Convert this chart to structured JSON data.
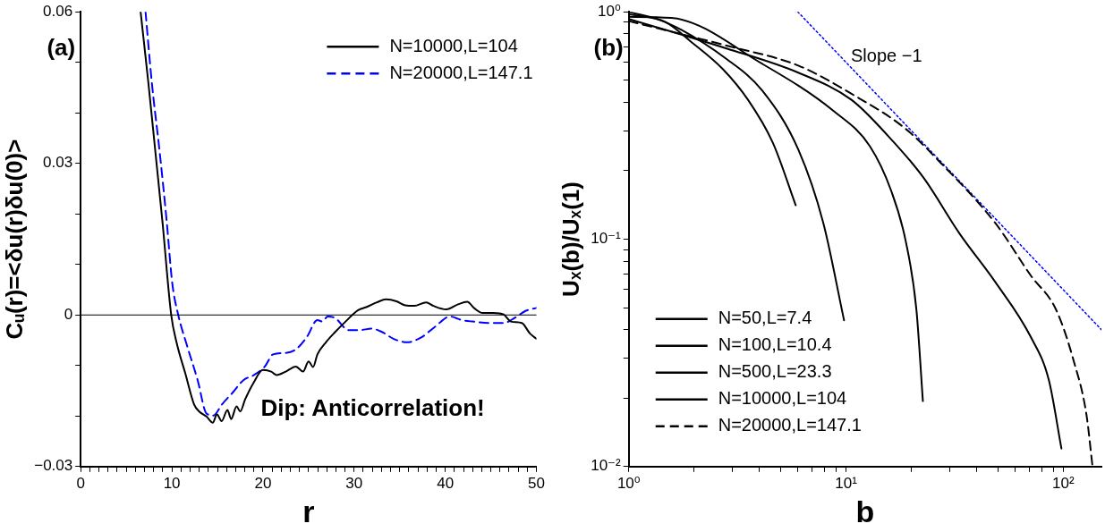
{
  "chart_data": [
    {
      "type": "line",
      "xlabel": "r",
      "ylabel": "Cᵤ(r)=<δu(r)δu(0)>",
      "xlim": [
        0,
        50
      ],
      "ylim": [
        -0.03,
        0.06
      ],
      "xticks": [
        0,
        {
          "value": 1,
          "label": null
        },
        {
          "value": 2,
          "label": null
        },
        {
          "value": 3,
          "label": null
        },
        {
          "value": 4,
          "label": null
        },
        {
          "value": 5,
          "label": null
        },
        {
          "value": 6,
          "label": null
        },
        {
          "value": 7,
          "label": null
        },
        {
          "value": 8,
          "label": null
        },
        {
          "value": 9,
          "label": null
        },
        10,
        {
          "value": 11,
          "label": null
        },
        {
          "value": 12,
          "label": null
        },
        {
          "value": 13,
          "label": null
        },
        {
          "value": 14,
          "label": null
        },
        {
          "value": 15,
          "label": null
        },
        {
          "value": 16,
          "label": null
        },
        {
          "value": 17,
          "label": null
        },
        {
          "value": 18,
          "label": null
        },
        {
          "value": 19,
          "label": null
        },
        20,
        {
          "value": 21,
          "label": null
        },
        {
          "value": 22,
          "label": null
        },
        {
          "value": 23,
          "label": null
        },
        {
          "value": 24,
          "label": null
        },
        {
          "value": 25,
          "label": null
        },
        {
          "value": 26,
          "label": null
        },
        {
          "value": 27,
          "label": null
        },
        {
          "value": 28,
          "label": null
        },
        {
          "value": 29,
          "label": null
        },
        30,
        {
          "value": 31,
          "label": null
        },
        {
          "value": 32,
          "label": null
        },
        {
          "value": 33,
          "label": null
        },
        {
          "value": 34,
          "label": null
        },
        {
          "value": 35,
          "label": null
        },
        {
          "value": 36,
          "label": null
        },
        {
          "value": 37,
          "label": null
        },
        {
          "value": 38,
          "label": null
        },
        {
          "value": 39,
          "label": null
        },
        40,
        {
          "value": 41,
          "label": null
        },
        {
          "value": 42,
          "label": null
        },
        {
          "value": 43,
          "label": null
        },
        {
          "value": 44,
          "label": null
        },
        {
          "value": 45,
          "label": null
        },
        {
          "value": 46,
          "label": null
        },
        {
          "value": 47,
          "label": null
        },
        {
          "value": 48,
          "label": null
        },
        {
          "value": 49,
          "label": null
        },
        50
      ],
      "yticks": [
        {
          "value": -0.03,
          "label": "−0.03"
        },
        {
          "value": -0.02,
          "label": null
        },
        {
          "value": -0.01,
          "label": null
        },
        0,
        {
          "value": 0.01,
          "label": null
        },
        {
          "value": 0.02,
          "label": null
        },
        0.03,
        {
          "value": 0.04,
          "label": null
        },
        {
          "value": 0.05,
          "label": null
        },
        0.06
      ],
      "grid": false,
      "legend": "top right",
      "ref_lines": [
        {
          "axis": "y",
          "value": 0,
          "color": "#000000"
        }
      ],
      "annotations": [
        "(a)",
        "Dip: Anticorrelation!"
      ],
      "series": [
        {
          "name": "N=10000,L=104",
          "color": "#000000",
          "line_style": "solid",
          "x": [
            6.57,
            7.42,
            8.19,
            8.96,
            9.93,
            10.51,
            11.48,
            12.44,
            13.0,
            13.8,
            14.49,
            14.95,
            15.46,
            16.1,
            16.5,
            17.1,
            17.5,
            18.04,
            19.0,
            19.98,
            20.9,
            21.5,
            22.5,
            23.6,
            24.4,
            25.0,
            25.5,
            25.97,
            26.9,
            27.9,
            29.06,
            30.4,
            31.4,
            32.5,
            33.5,
            34.65,
            35.6,
            36.6,
            37.9,
            38.7,
            40.1,
            41.4,
            42.4,
            43.2,
            44.1,
            45.3,
            46.4,
            47.2,
            48.4,
            49.3,
            50
          ],
          "values": [
            0.06,
            0.046,
            0.0323,
            0.0186,
            0,
            -0.0054,
            -0.0116,
            -0.0177,
            -0.0191,
            -0.0201,
            -0.0213,
            -0.0197,
            -0.021,
            -0.0188,
            -0.0206,
            -0.0181,
            -0.0191,
            -0.0167,
            -0.0133,
            -0.0109,
            -0.0112,
            -0.0119,
            -0.0112,
            -0.0102,
            -0.0112,
            -0.0092,
            -0.0103,
            -0.0078,
            -0.0054,
            -0.0034,
            -0.0013,
            0.0009,
            0.0016,
            0.0025,
            0.0031,
            0.0027,
            0.0019,
            0.0018,
            0.0025,
            0.0018,
            0.0011,
            0.0021,
            0.0026,
            0.0013,
            0.0004,
            0.0004,
            0.0001,
            -0.0013,
            -0.0016,
            -0.0037,
            -0.0047
          ]
        },
        {
          "name": "N=20000,L=147.1",
          "color": "#0000ff",
          "line_style": "dashed",
          "x": [
            7.11,
            7.8,
            8.66,
            9.43,
            10.05,
            10.7,
            11.67,
            12.83,
            13.8,
            14.57,
            15.5,
            16.7,
            17.85,
            19.0,
            20.2,
            21.1,
            22.5,
            23.6,
            24.8,
            25.97,
            26.5,
            27.1,
            27.9,
            29.4,
            30.6,
            31.9,
            33.1,
            34.3,
            35.8,
            37.4,
            38.9,
            40.5,
            41.8,
            43.0,
            44.9,
            46.4,
            47.6,
            48.8,
            50
          ],
          "values": [
            0.06,
            0.046,
            0.0323,
            0.0186,
            0.0062,
            0,
            -0.0061,
            -0.0129,
            -0.0195,
            -0.0199,
            -0.0177,
            -0.0153,
            -0.0129,
            -0.0119,
            -0.0102,
            -0.0078,
            -0.0075,
            -0.0068,
            -0.0044,
            -0.001,
            -0.0013,
            -0.0003,
            -0.0006,
            -0.003,
            -0.003,
            -0.0027,
            -0.0034,
            -0.0047,
            -0.0054,
            -0.0044,
            -0.0023,
            -0.0003,
            -0.001,
            -0.0013,
            -0.0016,
            -0.0016,
            -0.0006,
            0.0008,
            0.0014
          ]
        }
      ]
    },
    {
      "type": "line",
      "xlabel": "b",
      "ylabel": "Uₓ(b)/Uₓ(1)",
      "log": "xy",
      "xlim": [
        1,
        150
      ],
      "ylim": [
        0.01,
        1
      ],
      "xticks": [
        {
          "value": 1,
          "label": "10⁰"
        },
        {
          "value": 2,
          "label": null
        },
        {
          "value": 3,
          "label": null
        },
        {
          "value": 4,
          "label": null
        },
        {
          "value": 5,
          "label": null
        },
        {
          "value": 6,
          "label": null
        },
        {
          "value": 7,
          "label": null
        },
        {
          "value": 8,
          "label": null
        },
        {
          "value": 9,
          "label": null
        },
        {
          "value": 10,
          "label": "10¹"
        },
        {
          "value": 20,
          "label": null
        },
        {
          "value": 30,
          "label": null
        },
        {
          "value": 40,
          "label": null
        },
        {
          "value": 50,
          "label": null
        },
        {
          "value": 60,
          "label": null
        },
        {
          "value": 70,
          "label": null
        },
        {
          "value": 80,
          "label": null
        },
        {
          "value": 90,
          "label": null
        },
        {
          "value": 100,
          "label": "10²"
        }
      ],
      "yticks": [
        {
          "value": 0.01,
          "label": "10⁻²"
        },
        {
          "value": 0.02,
          "label": null
        },
        {
          "value": 0.03,
          "label": null
        },
        {
          "value": 0.04,
          "label": null
        },
        {
          "value": 0.05,
          "label": null
        },
        {
          "value": 0.06,
          "label": null
        },
        {
          "value": 0.07,
          "label": null
        },
        {
          "value": 0.08,
          "label": null
        },
        {
          "value": 0.09,
          "label": null
        },
        {
          "value": 0.1,
          "label": "10⁻¹"
        },
        {
          "value": 0.2,
          "label": null
        },
        {
          "value": 0.3,
          "label": null
        },
        {
          "value": 0.4,
          "label": null
        },
        {
          "value": 0.5,
          "label": null
        },
        {
          "value": 0.6,
          "label": null
        },
        {
          "value": 0.7,
          "label": null
        },
        {
          "value": 0.8,
          "label": null
        },
        {
          "value": 0.9,
          "label": null
        },
        {
          "value": 1,
          "label": "10⁰"
        }
      ],
      "grid": false,
      "legend": "bottom left",
      "annotations": [
        "(b)",
        "Slope −1"
      ],
      "series": [
        {
          "name": "N=50,L=7.4",
          "color": "#000000",
          "line_style": "solid",
          "x": [
            1,
            1.48,
            1.93,
            2.71,
            3.54,
            4.61,
            5.87
          ],
          "values": [
            0.976,
            0.9,
            0.74,
            0.56,
            0.41,
            0.265,
            0.141
          ]
        },
        {
          "name": "N=100,L=10.4",
          "color": "#000000",
          "line_style": "solid",
          "x": [
            1,
            1.48,
            2.82,
            4.12,
            6.03,
            7.86,
            9.8
          ],
          "values": [
            1.0,
            0.9,
            0.62,
            0.45,
            0.248,
            0.118,
            0.044
          ]
        },
        {
          "name": "N=500,L=23.3",
          "color": "#000000",
          "line_style": "solid",
          "x": [
            1,
            1.57,
            4.12,
            8.81,
            12.9,
            16.2,
            18.8,
            21.1,
            22.6
          ],
          "values": [
            0.95,
            0.94,
            0.59,
            0.365,
            0.256,
            0.162,
            0.099,
            0.049,
            0.0194
          ]
        },
        {
          "name": "N=10000,L=104",
          "color": "#000000",
          "line_style": "solid",
          "x": [
            1,
            2.82,
            6.03,
            10.6,
            15.6,
            22.7,
            33.3,
            48.6,
            71.1,
            85.9,
            98.2
          ],
          "values": [
            0.93,
            0.69,
            0.54,
            0.41,
            0.285,
            0.187,
            0.106,
            0.065,
            0.037,
            0.024,
            0.012
          ]
        },
        {
          "name": "N=20000,L=147.1",
          "color": "#000000",
          "line_style": "dashed",
          "x": [
            1,
            2.82,
            6.03,
            10.6,
            18.8,
            27.5,
            48.6,
            71.1,
            92.7,
            112,
            128,
            136.5
          ],
          "values": [
            0.91,
            0.71,
            0.58,
            0.436,
            0.306,
            0.215,
            0.118,
            0.069,
            0.049,
            0.029,
            0.0169,
            0.01
          ]
        },
        {
          "color": "#0000ff",
          "line_style": "dotted",
          "x": [
            6,
            150
          ],
          "values": [
            1,
            0.04
          ]
        }
      ]
    }
  ]
}
